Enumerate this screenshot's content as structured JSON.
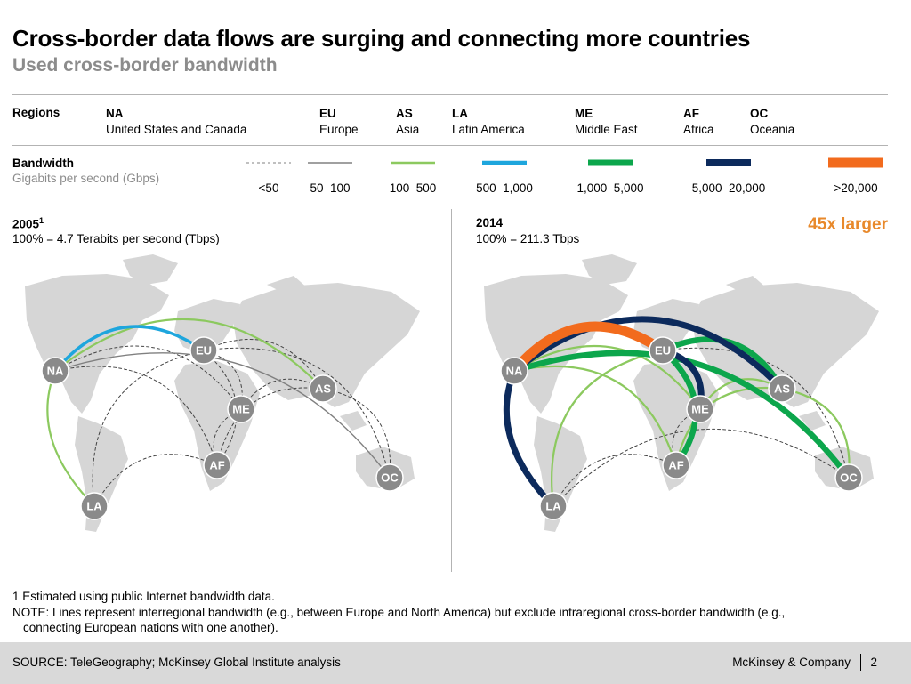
{
  "title": "Cross-border data flows are surging and connecting more countries",
  "subtitle": "Used cross-border bandwidth",
  "regions_label": "Regions",
  "regions": [
    {
      "code": "NA",
      "name": "United States and Canada"
    },
    {
      "code": "EU",
      "name": "Europe"
    },
    {
      "code": "AS",
      "name": "Asia"
    },
    {
      "code": "LA",
      "name": "Latin America"
    },
    {
      "code": "ME",
      "name": "Middle East"
    },
    {
      "code": "AF",
      "name": "Africa"
    },
    {
      "code": "OC",
      "name": "Oceania"
    }
  ],
  "bandwidth": {
    "label": "Bandwidth",
    "unit": "Gigabits per second (Gbps)",
    "classes": [
      {
        "label": "<50",
        "color": "#808080",
        "style": "dashed"
      },
      {
        "label": "50–100",
        "color": "#808080",
        "style": "solid"
      },
      {
        "label": "100–500",
        "color": "#8cc95f",
        "style": "solid"
      },
      {
        "label": "500–1,000",
        "color": "#1ea6dd",
        "style": "solid"
      },
      {
        "label": "1,000–5,000",
        "color": "#0ca64c",
        "style": "solid"
      },
      {
        "label": "5,000–20,000",
        "color": "#0c2a5c",
        "style": "solid"
      },
      {
        "label": ">20,000",
        "color": "#f26b1d",
        "style": "solid"
      }
    ]
  },
  "panels": [
    {
      "year": "2005",
      "footnote_marker": "1",
      "total": "100% = 4.7 Terabits per second (Tbps)",
      "growth_note": "",
      "links": [
        {
          "from": "NA",
          "to": "EU",
          "class": 3
        },
        {
          "from": "NA",
          "to": "LA",
          "class": 2
        },
        {
          "from": "NA",
          "to": "AS",
          "class": 2
        },
        {
          "from": "NA",
          "to": "OC",
          "class": 1
        },
        {
          "from": "NA",
          "to": "ME",
          "class": 0
        },
        {
          "from": "NA",
          "to": "AF",
          "class": 0
        },
        {
          "from": "EU",
          "to": "ME",
          "class": 0
        },
        {
          "from": "EU",
          "to": "AS",
          "class": 0
        },
        {
          "from": "EU",
          "to": "AF",
          "class": 0
        },
        {
          "from": "EU",
          "to": "LA",
          "class": 0
        },
        {
          "from": "EU",
          "to": "OC",
          "class": 0
        },
        {
          "from": "ME",
          "to": "AS",
          "class": 0
        },
        {
          "from": "ME",
          "to": "AF",
          "class": 0
        },
        {
          "from": "AS",
          "to": "AF",
          "class": 0
        },
        {
          "from": "AS",
          "to": "OC",
          "class": 0
        },
        {
          "from": "LA",
          "to": "AF",
          "class": 0
        }
      ]
    },
    {
      "year": "2014",
      "footnote_marker": "",
      "total": "100% = 211.3 Tbps",
      "growth_note": "45x larger",
      "links": [
        {
          "from": "NA",
          "to": "EU",
          "class": 6
        },
        {
          "from": "NA",
          "to": "AS",
          "class": 5
        },
        {
          "from": "NA",
          "to": "LA",
          "class": 5
        },
        {
          "from": "EU",
          "to": "ME",
          "class": 5
        },
        {
          "from": "NA",
          "to": "OC",
          "class": 4
        },
        {
          "from": "EU",
          "to": "AS",
          "class": 4
        },
        {
          "from": "EU",
          "to": "AF",
          "class": 4
        },
        {
          "from": "NA",
          "to": "ME",
          "class": 2
        },
        {
          "from": "NA",
          "to": "AF",
          "class": 2
        },
        {
          "from": "LA",
          "to": "EU",
          "class": 2
        },
        {
          "from": "AF",
          "to": "AS",
          "class": 2
        },
        {
          "from": "ME",
          "to": "AS",
          "class": 2
        },
        {
          "from": "AS",
          "to": "OC",
          "class": 2
        },
        {
          "from": "ME",
          "to": "AF",
          "class": 0
        },
        {
          "from": "LA",
          "to": "AF",
          "class": 0
        },
        {
          "from": "LA",
          "to": "OC",
          "class": 0
        },
        {
          "from": "EU",
          "to": "OC",
          "class": 0
        }
      ]
    }
  ],
  "footnotes": [
    "1 Estimated using public Internet bandwidth data.",
    "NOTE:  Lines represent interregional bandwidth (e.g., between Europe and North America) but exclude intraregional cross-border bandwidth (e.g.,",
    "connecting European nations with one another)."
  ],
  "source": "SOURCE: TeleGeography; McKinsey Global Institute analysis",
  "company": "McKinsey & Company",
  "page_number": "2"
}
